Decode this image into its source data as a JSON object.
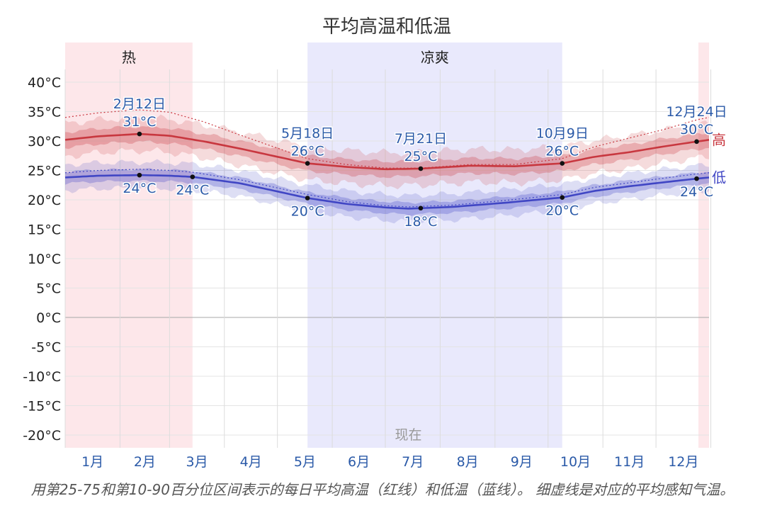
{
  "chart_data": {
    "type": "area",
    "title": "平均高温和低温",
    "ylim": [
      -22,
      43
    ],
    "yticks": [
      40,
      35,
      30,
      25,
      20,
      15,
      10,
      5,
      0,
      -5,
      -10,
      -15,
      -20
    ],
    "ytick_unit": "°C",
    "months": [
      "1月",
      "2月",
      "3月",
      "4月",
      "5月",
      "6月",
      "7月",
      "8月",
      "9月",
      "10月",
      "11月",
      "12月"
    ],
    "seasons": [
      {
        "name": "热",
        "start_day": 1,
        "end_day": 73,
        "color": "#fde7ea"
      },
      {
        "name": "凉爽",
        "start_day": 138,
        "end_day": 282,
        "color": "#e9e9fc"
      },
      {
        "name": "",
        "start_day": 359,
        "end_day": 365,
        "color": "#fde7ea"
      }
    ],
    "now_label": "现在",
    "now_day": 195,
    "series": [
      {
        "name": "高",
        "color": "#c8373f",
        "days": [
          1,
          20,
          43,
          60,
          80,
          100,
          138,
          160,
          182,
          202,
          230,
          255,
          282,
          300,
          320,
          340,
          358,
          365
        ],
        "values": [
          30.2,
          30.8,
          31.2,
          30.9,
          29.9,
          28.7,
          26.2,
          25.6,
          25.2,
          25.3,
          25.8,
          25.7,
          26.2,
          27.3,
          28.1,
          29.1,
          29.9,
          30.2
        ],
        "band25_75": 1.3,
        "band10_90": 2.8,
        "feels_like": [
          34.0,
          34.8,
          35.3,
          34.9,
          33.2,
          31.0,
          27.0,
          26.0,
          25.4,
          25.4,
          26.0,
          26.0,
          27.0,
          29.0,
          30.5,
          32.0,
          33.6,
          34.0
        ]
      },
      {
        "name": "低",
        "color": "#4046c4",
        "days": [
          1,
          20,
          43,
          60,
          73,
          100,
          138,
          160,
          182,
          195,
          220,
          250,
          282,
          300,
          320,
          340,
          358,
          365
        ],
        "values": [
          23.8,
          24.1,
          24.2,
          24.1,
          23.9,
          22.8,
          20.3,
          19.3,
          18.7,
          18.5,
          18.8,
          19.5,
          20.4,
          21.5,
          22.3,
          23.0,
          23.6,
          23.8
        ],
        "band25_75": 1.0,
        "band10_90": 2.2,
        "feels_like": [
          24.6,
          25.0,
          25.2,
          25.0,
          24.7,
          23.4,
          20.9,
          19.7,
          19.0,
          18.8,
          19.1,
          19.9,
          20.9,
          22.1,
          22.9,
          23.7,
          24.4,
          24.6
        ]
      }
    ],
    "annotations": [
      {
        "series": "高",
        "day": 43,
        "date": "2月12日",
        "value": "31°C",
        "place": "above"
      },
      {
        "series": "低",
        "day": 43,
        "date": "",
        "value": "24°C",
        "place": "below"
      },
      {
        "series": "低",
        "day": 73,
        "date": "",
        "value": "24°C",
        "place": "below"
      },
      {
        "series": "高",
        "day": 138,
        "date": "5月18日",
        "value": "26°C",
        "place": "above"
      },
      {
        "series": "低",
        "day": 138,
        "date": "",
        "value": "20°C",
        "place": "below"
      },
      {
        "series": "高",
        "day": 202,
        "date": "7月21日",
        "value": "25°C",
        "place": "above"
      },
      {
        "series": "低",
        "day": 202,
        "date": "",
        "value": "18°C",
        "place": "below"
      },
      {
        "series": "高",
        "day": 282,
        "date": "10月9日",
        "value": "26°C",
        "place": "above"
      },
      {
        "series": "低",
        "day": 282,
        "date": "",
        "value": "20°C",
        "place": "below"
      },
      {
        "series": "高",
        "day": 358,
        "date": "12月24日",
        "value": "30°C",
        "place": "above"
      },
      {
        "series": "低",
        "day": 358,
        "date": "",
        "value": "24°C",
        "place": "below"
      }
    ],
    "caption": "用第25-75和第10-90百分位区间表示的每日平均高温（红线）和低温（蓝线）。 细虚线是对应的平均感知气温。"
  }
}
